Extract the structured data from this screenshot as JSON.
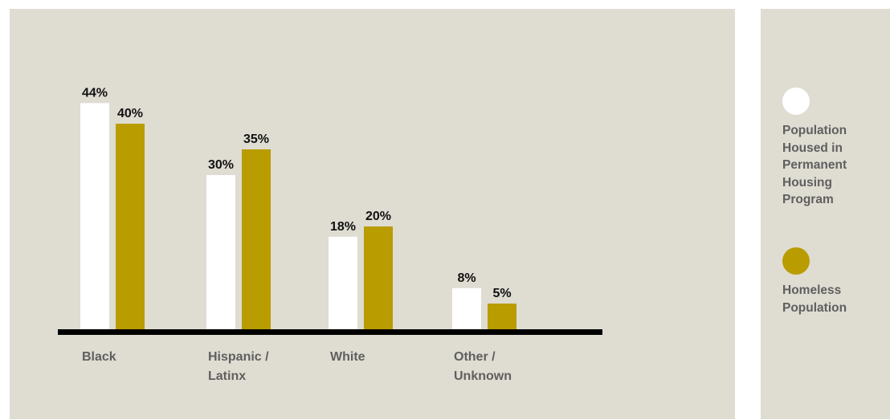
{
  "chart_data": {
    "type": "bar",
    "categories": [
      "Black",
      "Hispanic /\nLatinx",
      "White",
      "Other /\nUnknown"
    ],
    "series": [
      {
        "name": "Population Housed in Permanent Housing Program",
        "values": [
          44,
          30,
          18,
          8
        ],
        "labels": [
          "44%",
          "30%",
          "18%",
          "8%"
        ],
        "color": "#ffffff"
      },
      {
        "name": "Homeless Population",
        "values": [
          40,
          35,
          20,
          5
        ],
        "labels": [
          "40%",
          "35%",
          "20%",
          "5%"
        ],
        "color": "#b99c00"
      }
    ],
    "ylim": [
      0,
      50
    ],
    "grid": false,
    "legend_position": "right",
    "baseline_color": "#000000"
  },
  "legend": {
    "items": [
      {
        "label": "Population\nHoused in\nPermanent\nHousing\nProgram",
        "color": "#ffffff"
      },
      {
        "label": "Homeless\nPopulation",
        "color": "#b99c00"
      }
    ]
  }
}
